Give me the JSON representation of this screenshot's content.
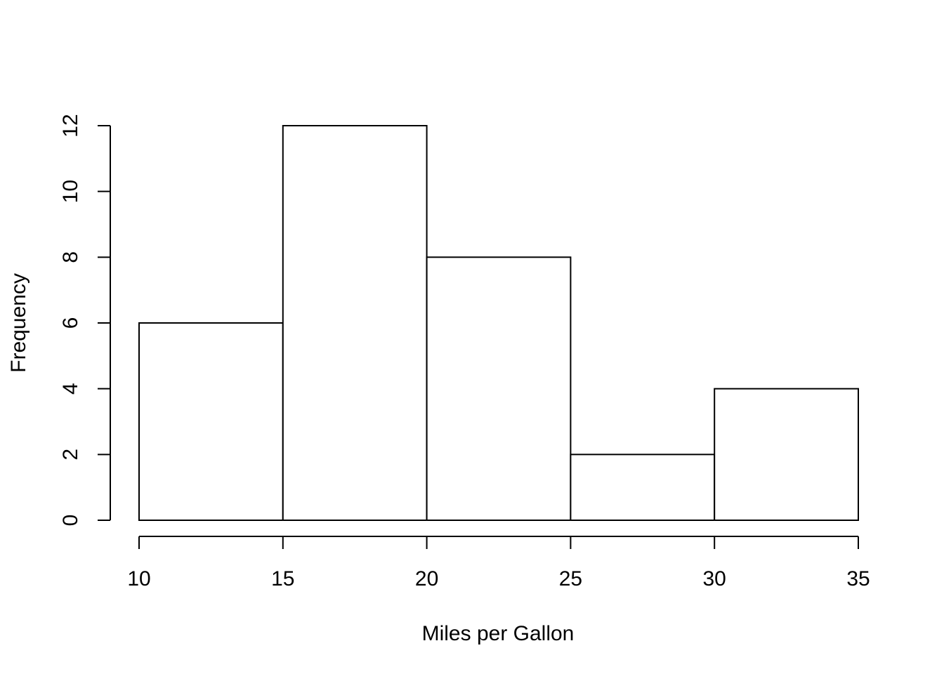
{
  "chart_data": {
    "type": "bar",
    "bins": [
      {
        "from": 10,
        "to": 15,
        "count": 6
      },
      {
        "from": 15,
        "to": 20,
        "count": 12
      },
      {
        "from": 20,
        "to": 25,
        "count": 8
      },
      {
        "from": 25,
        "to": 30,
        "count": 2
      },
      {
        "from": 30,
        "to": 35,
        "count": 4
      }
    ],
    "title": "",
    "xlabel": "Miles per Gallon",
    "ylabel": "Frequency",
    "xlim": [
      10,
      35
    ],
    "ylim": [
      0,
      12
    ],
    "x_ticks": [
      "10",
      "15",
      "20",
      "25",
      "30",
      "35"
    ],
    "y_ticks": [
      "0",
      "2",
      "4",
      "6",
      "8",
      "10",
      "12"
    ],
    "grid": false,
    "bar_fill": "#ffffff",
    "stroke_color": "#000000"
  }
}
